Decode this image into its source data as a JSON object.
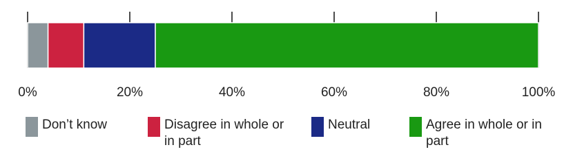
{
  "chart_data": {
    "type": "stacked_bar",
    "orientation": "horizontal",
    "categories": [
      null
    ],
    "series": [
      {
        "name": "Don’t know",
        "color": "#8b969b",
        "values": [
          4
        ]
      },
      {
        "name": "Disagree in whole or in part",
        "color": "#cc2240",
        "values": [
          7
        ]
      },
      {
        "name": "Neutral",
        "color": "#1b2a86",
        "values": [
          14
        ]
      },
      {
        "name": "Agree in whole or in part",
        "color": "#199912",
        "values": [
          75
        ]
      }
    ],
    "xlim": [
      0,
      100
    ],
    "xticks": [
      {
        "value": 0,
        "label": "0%"
      },
      {
        "value": 20,
        "label": "20%"
      },
      {
        "value": 40,
        "label": "40%"
      },
      {
        "value": 60,
        "label": "60%"
      },
      {
        "value": 80,
        "label": "80%"
      },
      {
        "value": 100,
        "label": "100%"
      }
    ]
  }
}
